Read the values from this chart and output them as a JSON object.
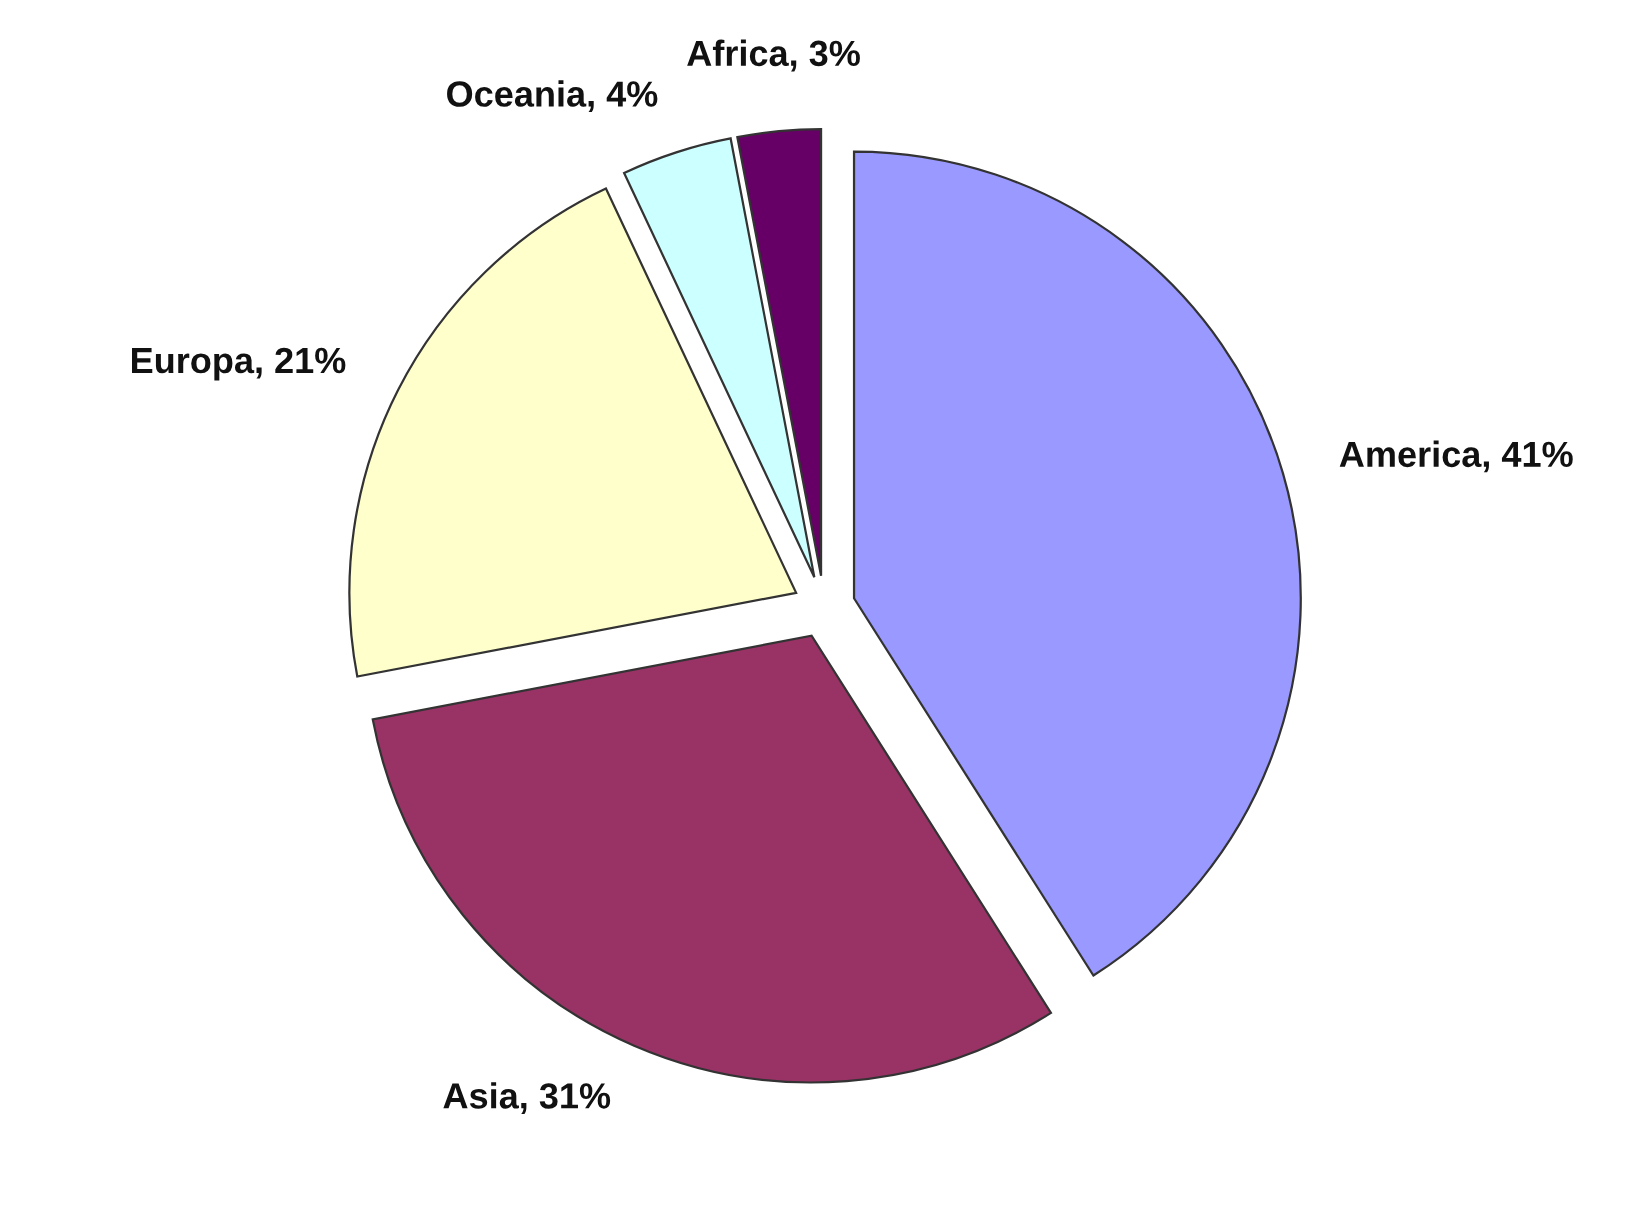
{
  "chart_data": {
    "type": "pie",
    "categories": [
      "America",
      "Asia",
      "Europa",
      "Oceania",
      "Africa"
    ],
    "values": [
      41,
      31,
      21,
      4,
      3
    ],
    "value_labels": [
      "41%",
      "31%",
      "21%",
      "4%",
      "3%"
    ],
    "colors": [
      "#9999ff",
      "#993366",
      "#ffffcc",
      "#ccffff",
      "#660066"
    ],
    "legend": false
  }
}
